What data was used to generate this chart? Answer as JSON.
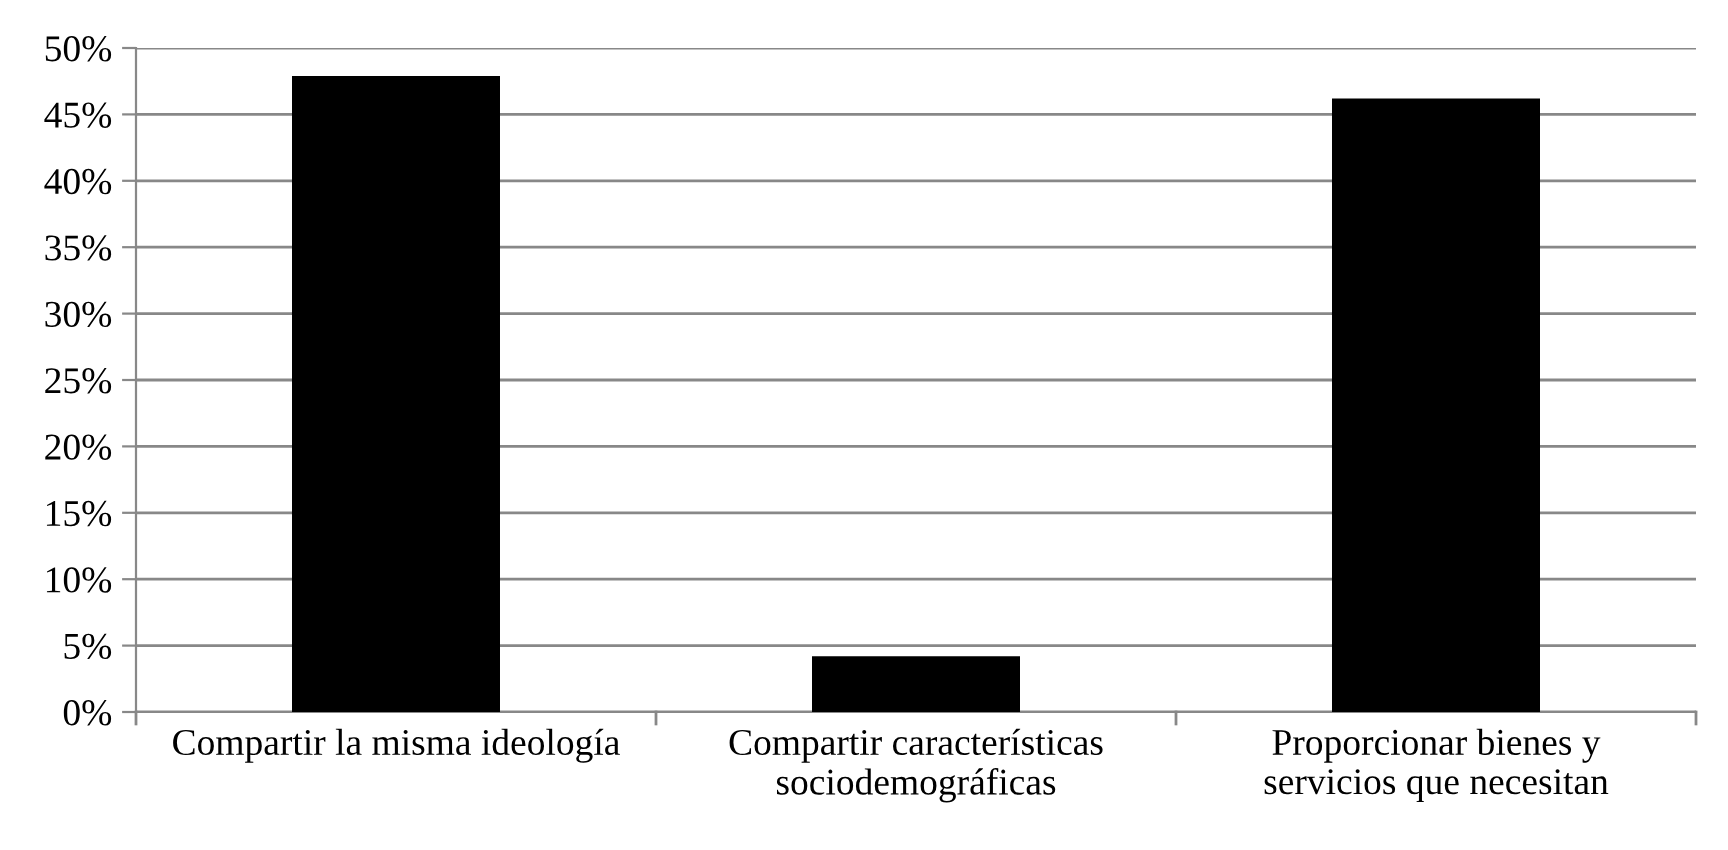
{
  "chart_data": {
    "type": "bar",
    "categories": [
      "Compartir la misma ideología",
      "Compartir características\nsociodemográficas",
      "Proporcionar bienes y\nservicios que necesitan"
    ],
    "values": [
      47.9,
      4.2,
      46.2
    ],
    "color": "#000000",
    "ylim": [
      0,
      50
    ],
    "yticks": [
      {
        "value": 0,
        "label": "0%"
      },
      {
        "value": 5,
        "label": "5%"
      },
      {
        "value": 10,
        "label": "10%"
      },
      {
        "value": 15,
        "label": "15%"
      },
      {
        "value": 20,
        "label": "20%"
      },
      {
        "value": 25,
        "label": "25%"
      },
      {
        "value": 30,
        "label": "30%"
      },
      {
        "value": 35,
        "label": "35%"
      },
      {
        "value": 40,
        "label": "40%"
      },
      {
        "value": 45,
        "label": "45%"
      },
      {
        "value": 50,
        "label": "50%"
      }
    ],
    "grid": "y"
  }
}
